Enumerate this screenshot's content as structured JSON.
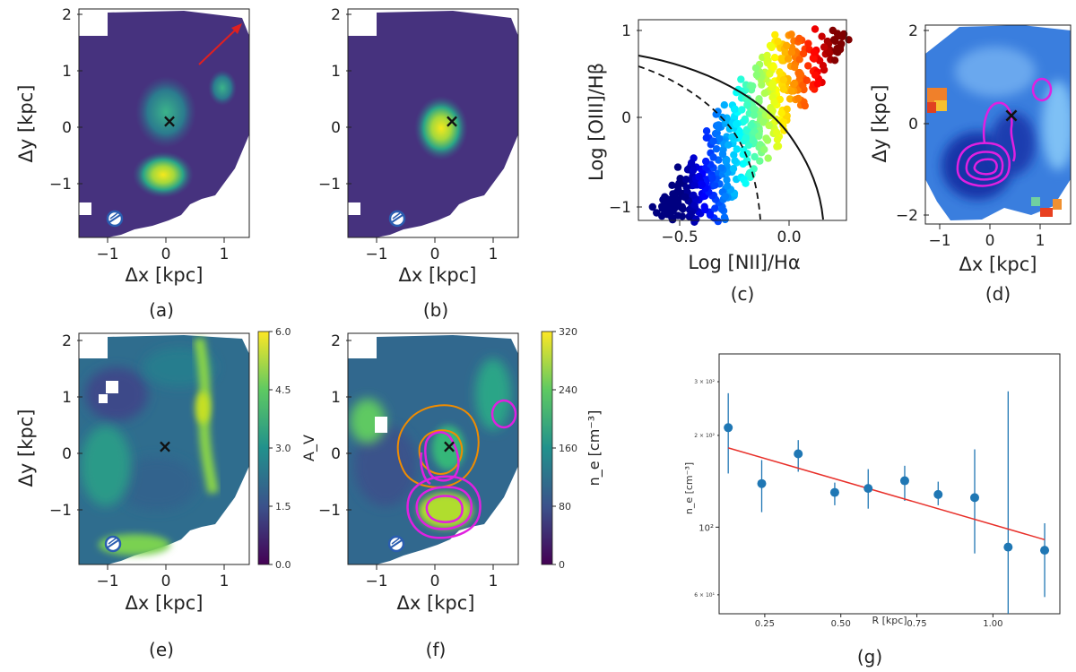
{
  "panels": {
    "a": {
      "caption": "(a)",
      "xlabel": "Δx [kpc]",
      "ylabel": "Δy [kpc]",
      "xticks": [
        "−1",
        "0",
        "1"
      ],
      "yticks": [
        "2",
        "1",
        "0",
        "−1"
      ]
    },
    "b": {
      "caption": "(b)",
      "xlabel": "Δx [kpc]",
      "xticks": [
        "−1",
        "0",
        "1"
      ],
      "yticks": [
        "2",
        "1",
        "0",
        "−1"
      ]
    },
    "c": {
      "caption": "(c)",
      "xlabel": "Log [NII]/Hα",
      "ylabel": "Log [OIII]/Hβ",
      "xticks": [
        "−0.5",
        "0.0"
      ],
      "yticks": [
        "1",
        "0",
        "−1"
      ]
    },
    "d": {
      "caption": "(d)",
      "xlabel": "Δx [kpc]",
      "ylabel": "Δy [kpc]",
      "xticks": [
        "−1",
        "0",
        "1"
      ],
      "yticks": [
        "2",
        "0",
        "−2"
      ]
    },
    "e": {
      "caption": "(e)",
      "xlabel": "Δx [kpc]",
      "ylabel": "Δy [kpc]",
      "xticks": [
        "−1",
        "0",
        "1"
      ],
      "yticks": [
        "2",
        "1",
        "0",
        "−1"
      ],
      "cbar_label": "A_V",
      "cbar_ticks": [
        "6.0",
        "4.5",
        "3.0",
        "1.5",
        "0.0"
      ]
    },
    "f": {
      "caption": "(f)",
      "xlabel": "Δx [kpc]",
      "xticks": [
        "−1",
        "0",
        "1"
      ],
      "yticks": [
        "2",
        "1",
        "0",
        "−1"
      ],
      "cbar_label": "n_e [cm⁻³]",
      "cbar_ticks": [
        "320",
        "240",
        "160",
        "80",
        "0"
      ]
    },
    "g": {
      "caption": "(g)",
      "xlabel": "R [kpc]",
      "ylabel": "n_e [cm⁻³]",
      "xticks": [
        "0.25",
        "0.50",
        "0.75",
        "1.00"
      ],
      "yticks_major": [
        "10²"
      ],
      "yticks_minor": [
        "3 × 10²",
        "2 × 10²",
        "6 × 10¹"
      ]
    }
  },
  "colors": {
    "points": "#1f77b4",
    "fit": "#e8302a",
    "contour_main": "#e020e0",
    "contour_alt": "#f08c00",
    "arrow": "#e02020"
  },
  "chart_data": [
    {
      "type": "scatter",
      "panel": "g",
      "xlabel": "R [kpc]",
      "ylabel": "n_e [cm⁻³]",
      "yscale": "log",
      "xlim": [
        0.1,
        1.22
      ],
      "ylim": [
        52,
        370
      ],
      "x": [
        0.13,
        0.24,
        0.36,
        0.48,
        0.59,
        0.71,
        0.82,
        0.94,
        1.05,
        1.17
      ],
      "y": [
        212,
        139,
        174,
        130,
        134,
        142,
        128,
        125,
        86,
        84
      ],
      "yerr_low": [
        62,
        27,
        22,
        12,
        19,
        20,
        10,
        43,
        34,
        25
      ],
      "yerr_high": [
        63,
        27,
        19,
        10,
        21,
        17,
        13,
        55,
        193,
        19
      ],
      "fit": {
        "x": [
          0.13,
          1.17
        ],
        "y": [
          182,
          91
        ]
      }
    },
    {
      "type": "scatter",
      "panel": "c",
      "xlabel": "Log [NII]/Hα",
      "ylabel": "Log [OIII]/Hβ",
      "xlim": [
        -0.82,
        0.38
      ],
      "ylim": [
        -1.2,
        1.1
      ],
      "curves": [
        "Kewley 2001 (solid)",
        "Kauffmann 2003 (dashed)"
      ]
    }
  ]
}
